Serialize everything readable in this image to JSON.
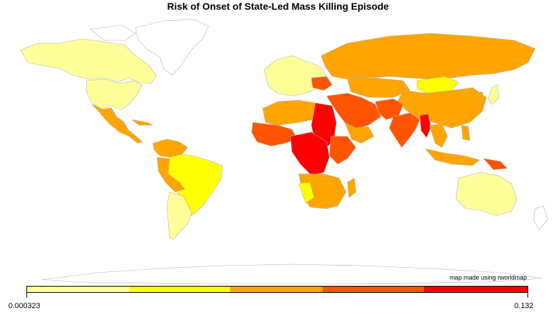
{
  "title": "Risk of Onset of State-Led Mass Killing Episode",
  "credit": "map made using rworldmap",
  "legend": {
    "min_label": "0.000323",
    "max_label": "0.132",
    "min_value": 0.000323,
    "max_value": 0.132,
    "classes": [
      {
        "color": "#FFFF99",
        "share": 20.6
      },
      {
        "color": "#FFFF00",
        "share": 19.9
      },
      {
        "color": "#FFA500",
        "share": 18.5
      },
      {
        "color": "#FF5500",
        "share": 20.3
      },
      {
        "color": "#FF0000",
        "share": 20.7
      }
    ]
  },
  "colors": {
    "ocean": "#ffffff",
    "border": "#b0b0b0",
    "no_data": "#ffffff"
  }
}
